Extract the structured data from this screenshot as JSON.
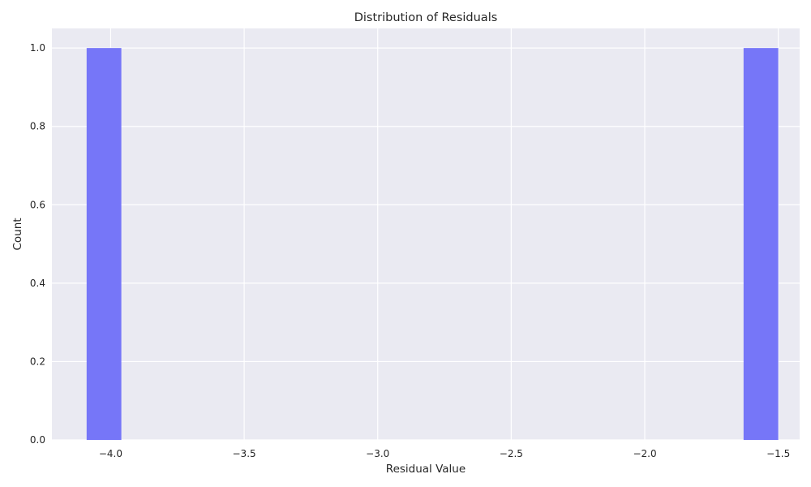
{
  "chart_data": {
    "type": "bar",
    "title": "Distribution of Residuals",
    "xlabel": "Residual Value",
    "ylabel": "Count",
    "xlim": [
      -4.22,
      -1.42
    ],
    "ylim": [
      0,
      1.05
    ],
    "xticks": [
      -4.0,
      -3.5,
      -3.0,
      -2.5,
      -2.0,
      -1.5
    ],
    "xtick_labels": [
      "−4.0",
      "−3.5",
      "−3.0",
      "−2.5",
      "−2.0",
      "−1.5"
    ],
    "yticks": [
      0.0,
      0.2,
      0.4,
      0.6,
      0.8,
      1.0
    ],
    "ytick_labels": [
      "0.0",
      "0.2",
      "0.4",
      "0.6",
      "0.8",
      "1.0"
    ],
    "bins": [
      {
        "x0": -4.09,
        "x1": -3.96,
        "count": 1
      },
      {
        "x0": -1.63,
        "x1": -1.5,
        "count": 1
      }
    ],
    "grid": true,
    "colors": {
      "bar": "#7676f8",
      "plot_background": "#eaeaf2",
      "grid": "#ffffff"
    }
  }
}
